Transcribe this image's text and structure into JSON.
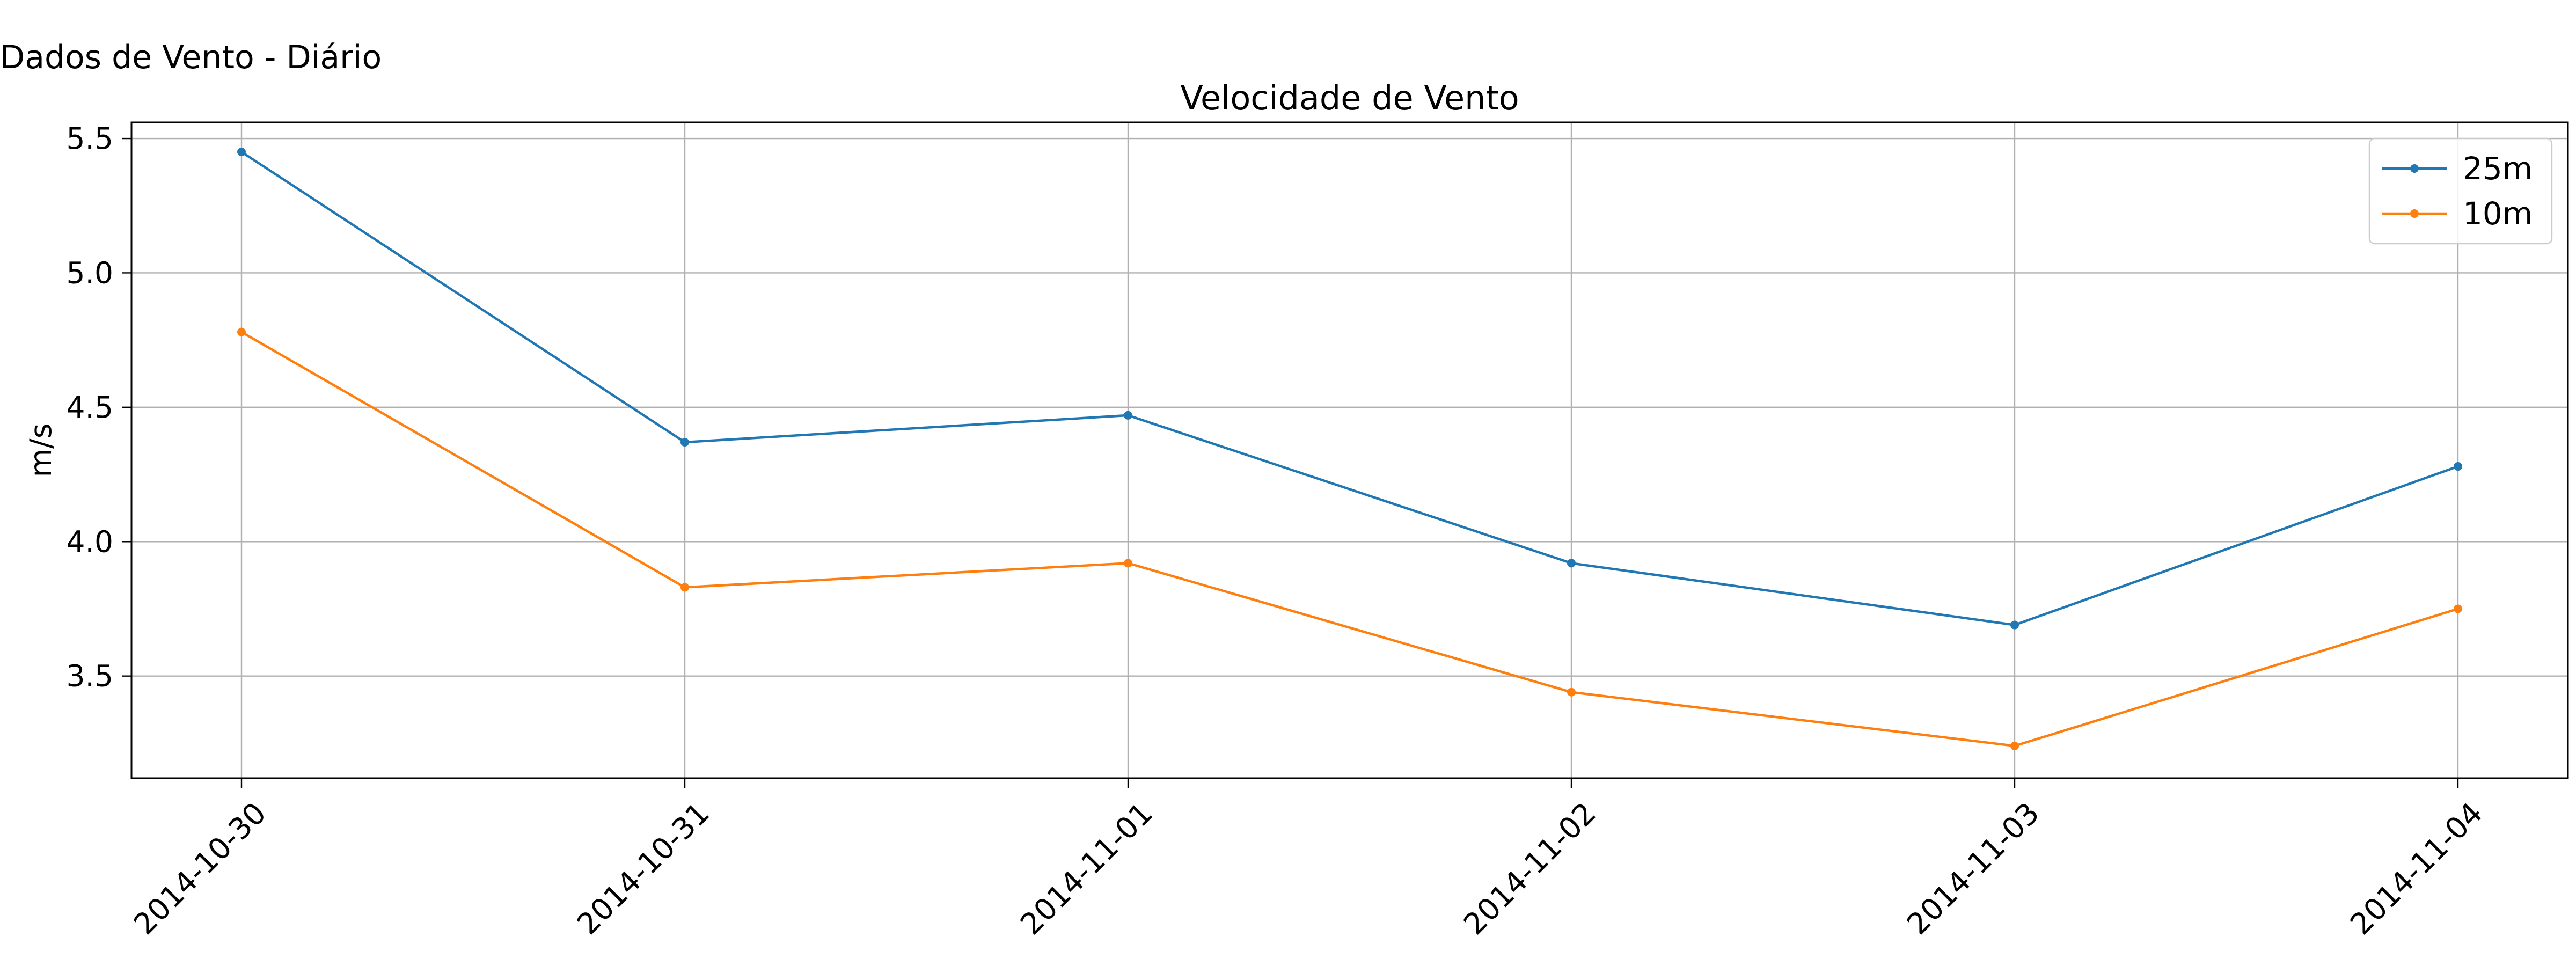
{
  "figure_title": "Dados de Vento - Diário",
  "chart_data": {
    "type": "line",
    "title": "Velocidade de Vento",
    "xlabel": "",
    "ylabel": "m/s",
    "x": [
      "2014-10-30",
      "2014-10-31",
      "2014-11-01",
      "2014-11-02",
      "2014-11-03",
      "2014-11-04"
    ],
    "ylim": [
      3.12,
      5.56
    ],
    "yticks": [
      3.5,
      4.0,
      4.5,
      5.0,
      5.5
    ],
    "ytick_labels": [
      "3.5",
      "4.0",
      "4.5",
      "5.0",
      "5.5"
    ],
    "grid": true,
    "legend_position": "top-right",
    "series": [
      {
        "name": "25m",
        "color": "#1f77b4",
        "values": [
          5.45,
          4.37,
          4.47,
          3.92,
          3.69,
          4.28
        ]
      },
      {
        "name": "10m",
        "color": "#ff7f0e",
        "values": [
          4.78,
          3.83,
          3.92,
          3.44,
          3.24,
          3.75
        ]
      }
    ]
  }
}
